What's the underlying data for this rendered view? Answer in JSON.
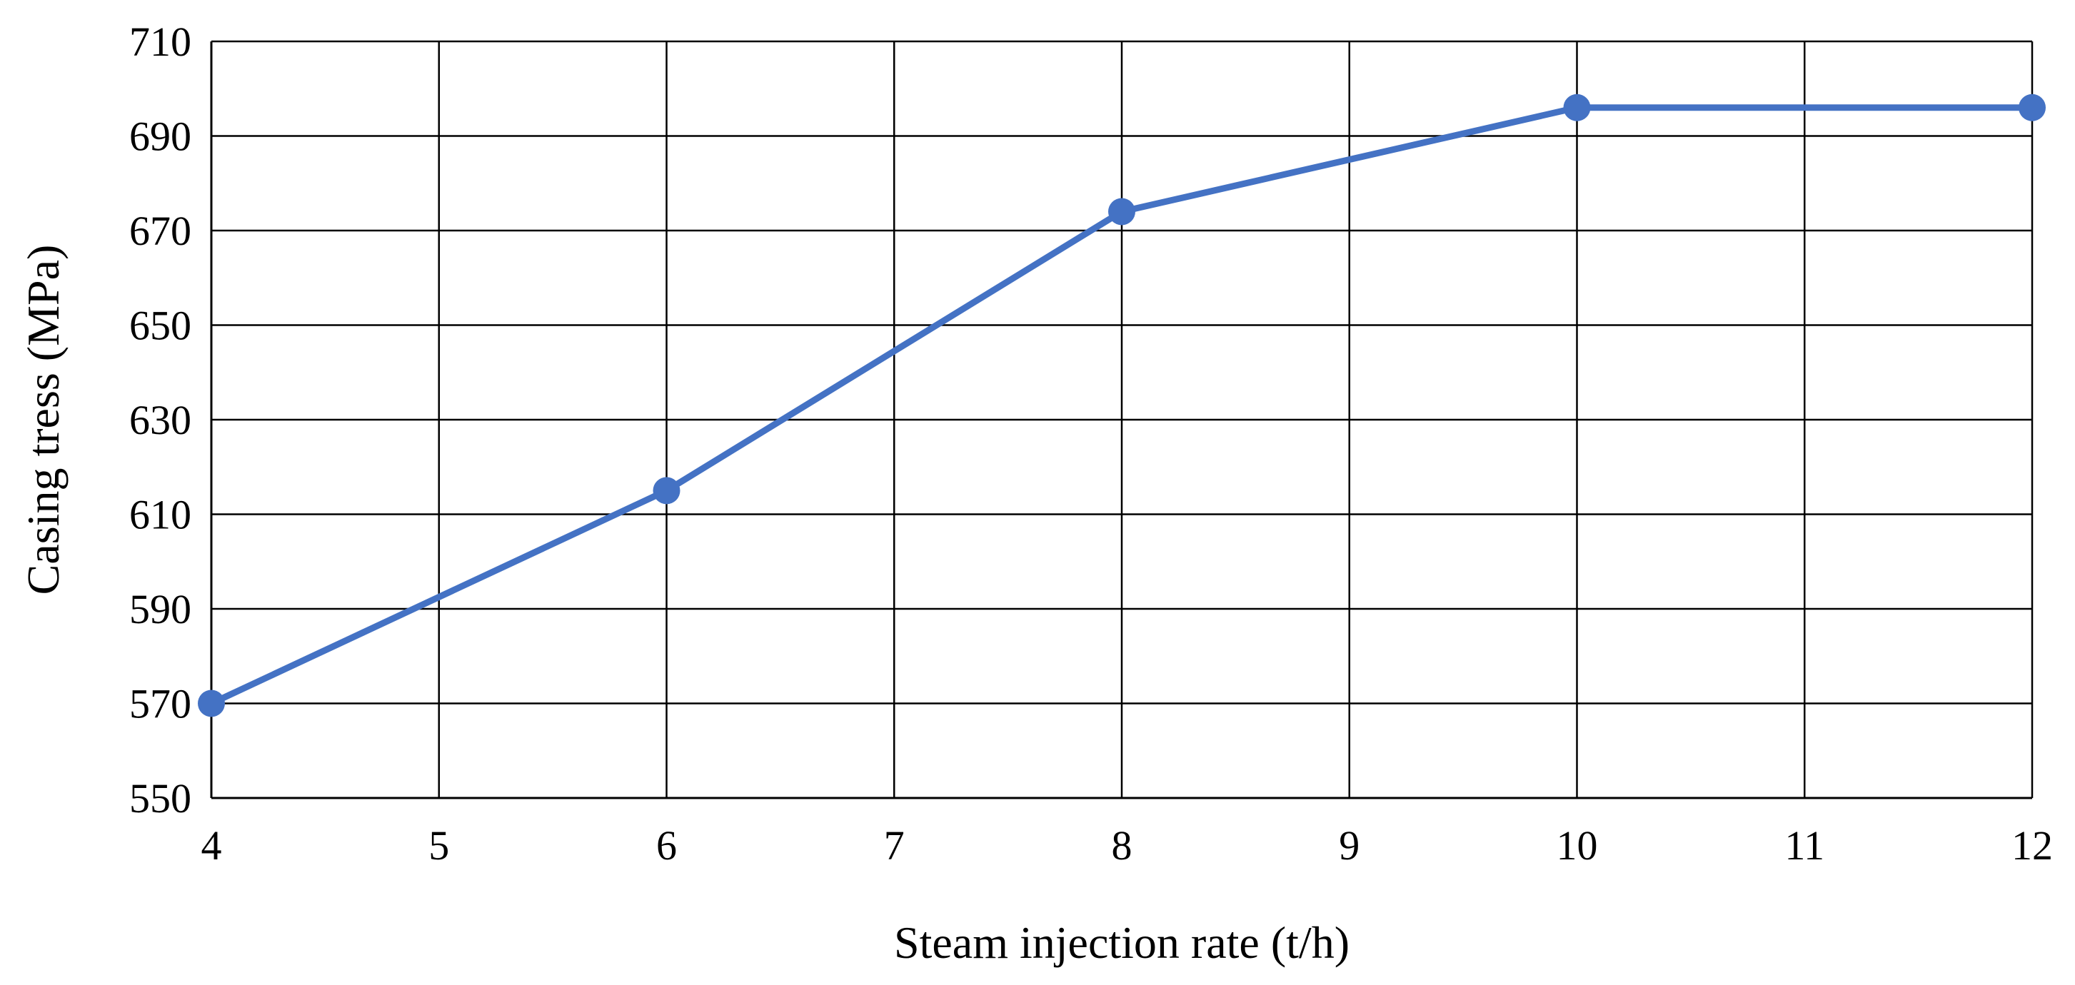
{
  "chart_data": {
    "type": "line",
    "title": "",
    "xlabel": "Steam injection rate (t/h)",
    "ylabel": "Casing tress (MPa)",
    "xlim": [
      4,
      12
    ],
    "ylim": [
      550,
      710
    ],
    "x_ticks": [
      4,
      5,
      6,
      7,
      8,
      9,
      10,
      11,
      12
    ],
    "y_ticks": [
      550,
      570,
      590,
      610,
      630,
      650,
      670,
      690,
      710
    ],
    "grid": true,
    "legend": "none",
    "series": [
      {
        "color": "#4472C4",
        "points": [
          {
            "x": 4,
            "y": 570
          },
          {
            "x": 6,
            "y": 615
          },
          {
            "x": 8,
            "y": 674
          },
          {
            "x": 10,
            "y": 696
          },
          {
            "x": 12,
            "y": 696
          }
        ]
      }
    ]
  }
}
